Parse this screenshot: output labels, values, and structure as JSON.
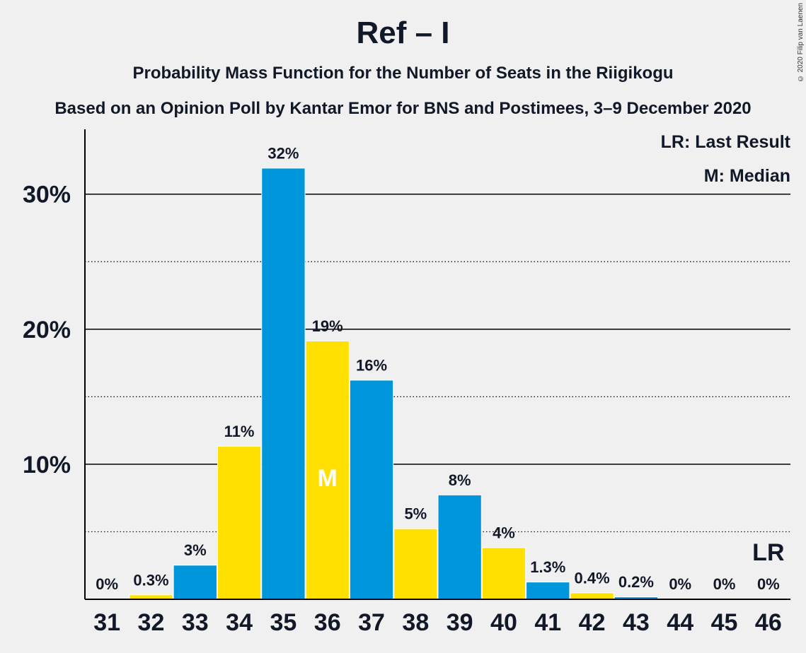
{
  "title": "Ref – I",
  "subtitle_1": "Probability Mass Function for the Number of Seats in the Riigikogu",
  "subtitle_2": "Based on an Opinion Poll by Kantar Emor for BNS and Postimees, 3–9 December 2020",
  "copyright": "© 2020 Filip van Laenen",
  "legend": {
    "last_result": "LR: Last Result",
    "median": "M: Median"
  },
  "colors": {
    "blue": "#0096db",
    "yellow": "#ffe000",
    "background": "#f0f0f0",
    "axis": "#000000"
  },
  "chart_data": {
    "type": "bar",
    "categories": [
      "31",
      "32",
      "33",
      "34",
      "35",
      "36",
      "37",
      "38",
      "39",
      "40",
      "41",
      "42",
      "43",
      "44",
      "45",
      "46"
    ],
    "values": [
      0,
      0.3,
      2.5,
      11.3,
      31.9,
      19.1,
      16.2,
      5.2,
      7.7,
      3.8,
      1.25,
      0.45,
      0.15,
      0,
      0,
      0
    ],
    "labels": [
      "0%",
      "0.3%",
      "3%",
      "11%",
      "32%",
      "19%",
      "16%",
      "5%",
      "8%",
      "4%",
      "1.3%",
      "0.4%",
      "0.2%",
      "0%",
      "0%",
      "0%"
    ],
    "bar_colors": [
      "blue",
      "yellow",
      "blue",
      "yellow",
      "blue",
      "yellow",
      "blue",
      "yellow",
      "blue",
      "yellow",
      "blue",
      "yellow",
      "blue",
      "yellow",
      "blue",
      "yellow"
    ],
    "yticks": [
      {
        "value": 10,
        "label": "10%"
      },
      {
        "value": 20,
        "label": "20%"
      },
      {
        "value": 30,
        "label": "30%"
      }
    ],
    "minor_gridlines": [
      5,
      15,
      25
    ],
    "ylim": [
      0,
      34.8
    ],
    "median_seat": "36",
    "median_marker": "M",
    "last_result_seat": "46",
    "last_result_marker": "LR"
  }
}
